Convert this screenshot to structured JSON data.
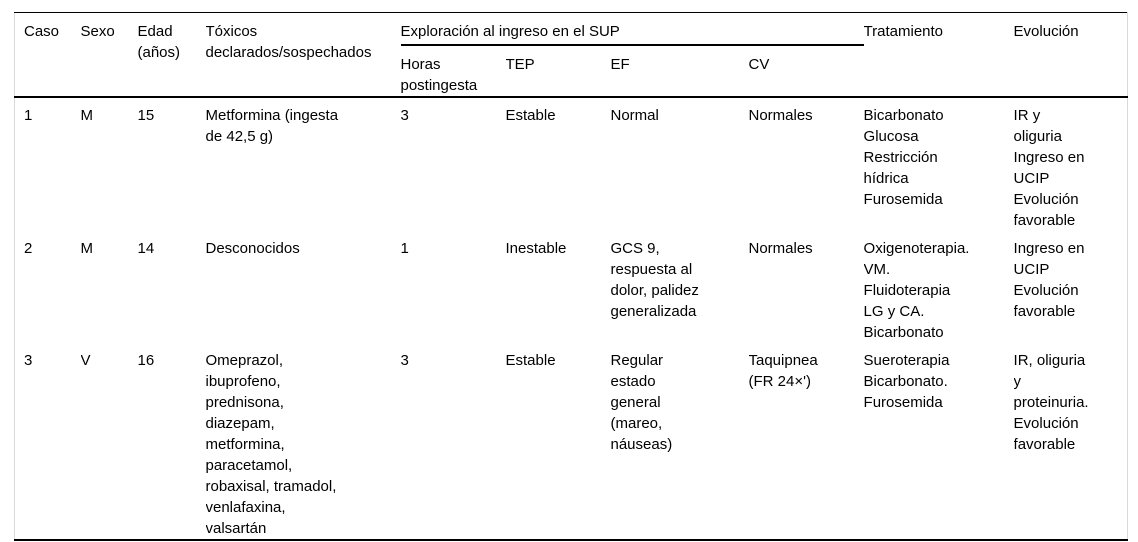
{
  "table": {
    "headers": {
      "caso": "Caso",
      "sexo": "Sexo",
      "edad": "Edad\n(años)",
      "toxicos": "Tóxicos\ndeclarados/sospechados",
      "exploracion_group": "Exploración al ingreso en el SUP",
      "horas": "Horas\npostingesta",
      "tep": "TEP",
      "ef": "EF",
      "cv": "CV",
      "tratamiento": "Tratamiento",
      "evolucion": "Evolución"
    },
    "rows": [
      {
        "caso": "1",
        "sexo": "M",
        "edad": "15",
        "toxicos": "Metformina (ingesta\nde 42,5 g)",
        "horas": "3",
        "tep": "Estable",
        "ef": "Normal",
        "cv": "Normales",
        "tratamiento": "Bicarbonato\nGlucosa\nRestricción\nhídrica\nFurosemida",
        "evolucion": "IR y\noliguria\nIngreso en\nUCIP\nEvolución\nfavorable"
      },
      {
        "caso": "2",
        "sexo": "M",
        "edad": "14",
        "toxicos": "Desconocidos",
        "horas": "1",
        "tep": "Inestable",
        "ef": "GCS 9,\nrespuesta al\ndolor, palidez\ngeneralizada",
        "cv": "Normales",
        "tratamiento": "Oxigenoterapia.\nVM.\nFluidoterapia\nLG y CA.\nBicarbonato",
        "evolucion": "Ingreso en\nUCIP\nEvolución\nfavorable"
      },
      {
        "caso": "3",
        "sexo": "V",
        "edad": "16",
        "toxicos": "Omeprazol,\nibuprofeno,\nprednisona,\ndiazepam,\nmetformina,\nparacetamol,\nrobaxisal, tramadol,\nvenlafaxina,\nvalsartán",
        "horas": "3",
        "tep": "Estable",
        "ef": "Regular\nestado\ngeneral\n(mareo,\nnáuseas)",
        "cv": "Taquipnea\n(FR 24×')",
        "tratamiento": "Sueroterapia\nBicarbonato.\nFurosemida",
        "evolucion": "IR, oliguria\ny\nproteinuria.\nEvolución\nfavorable"
      }
    ],
    "colors": {
      "text": "#000000",
      "rule": "#000000",
      "frame": "#d9d9d9",
      "background": "#ffffff"
    }
  }
}
